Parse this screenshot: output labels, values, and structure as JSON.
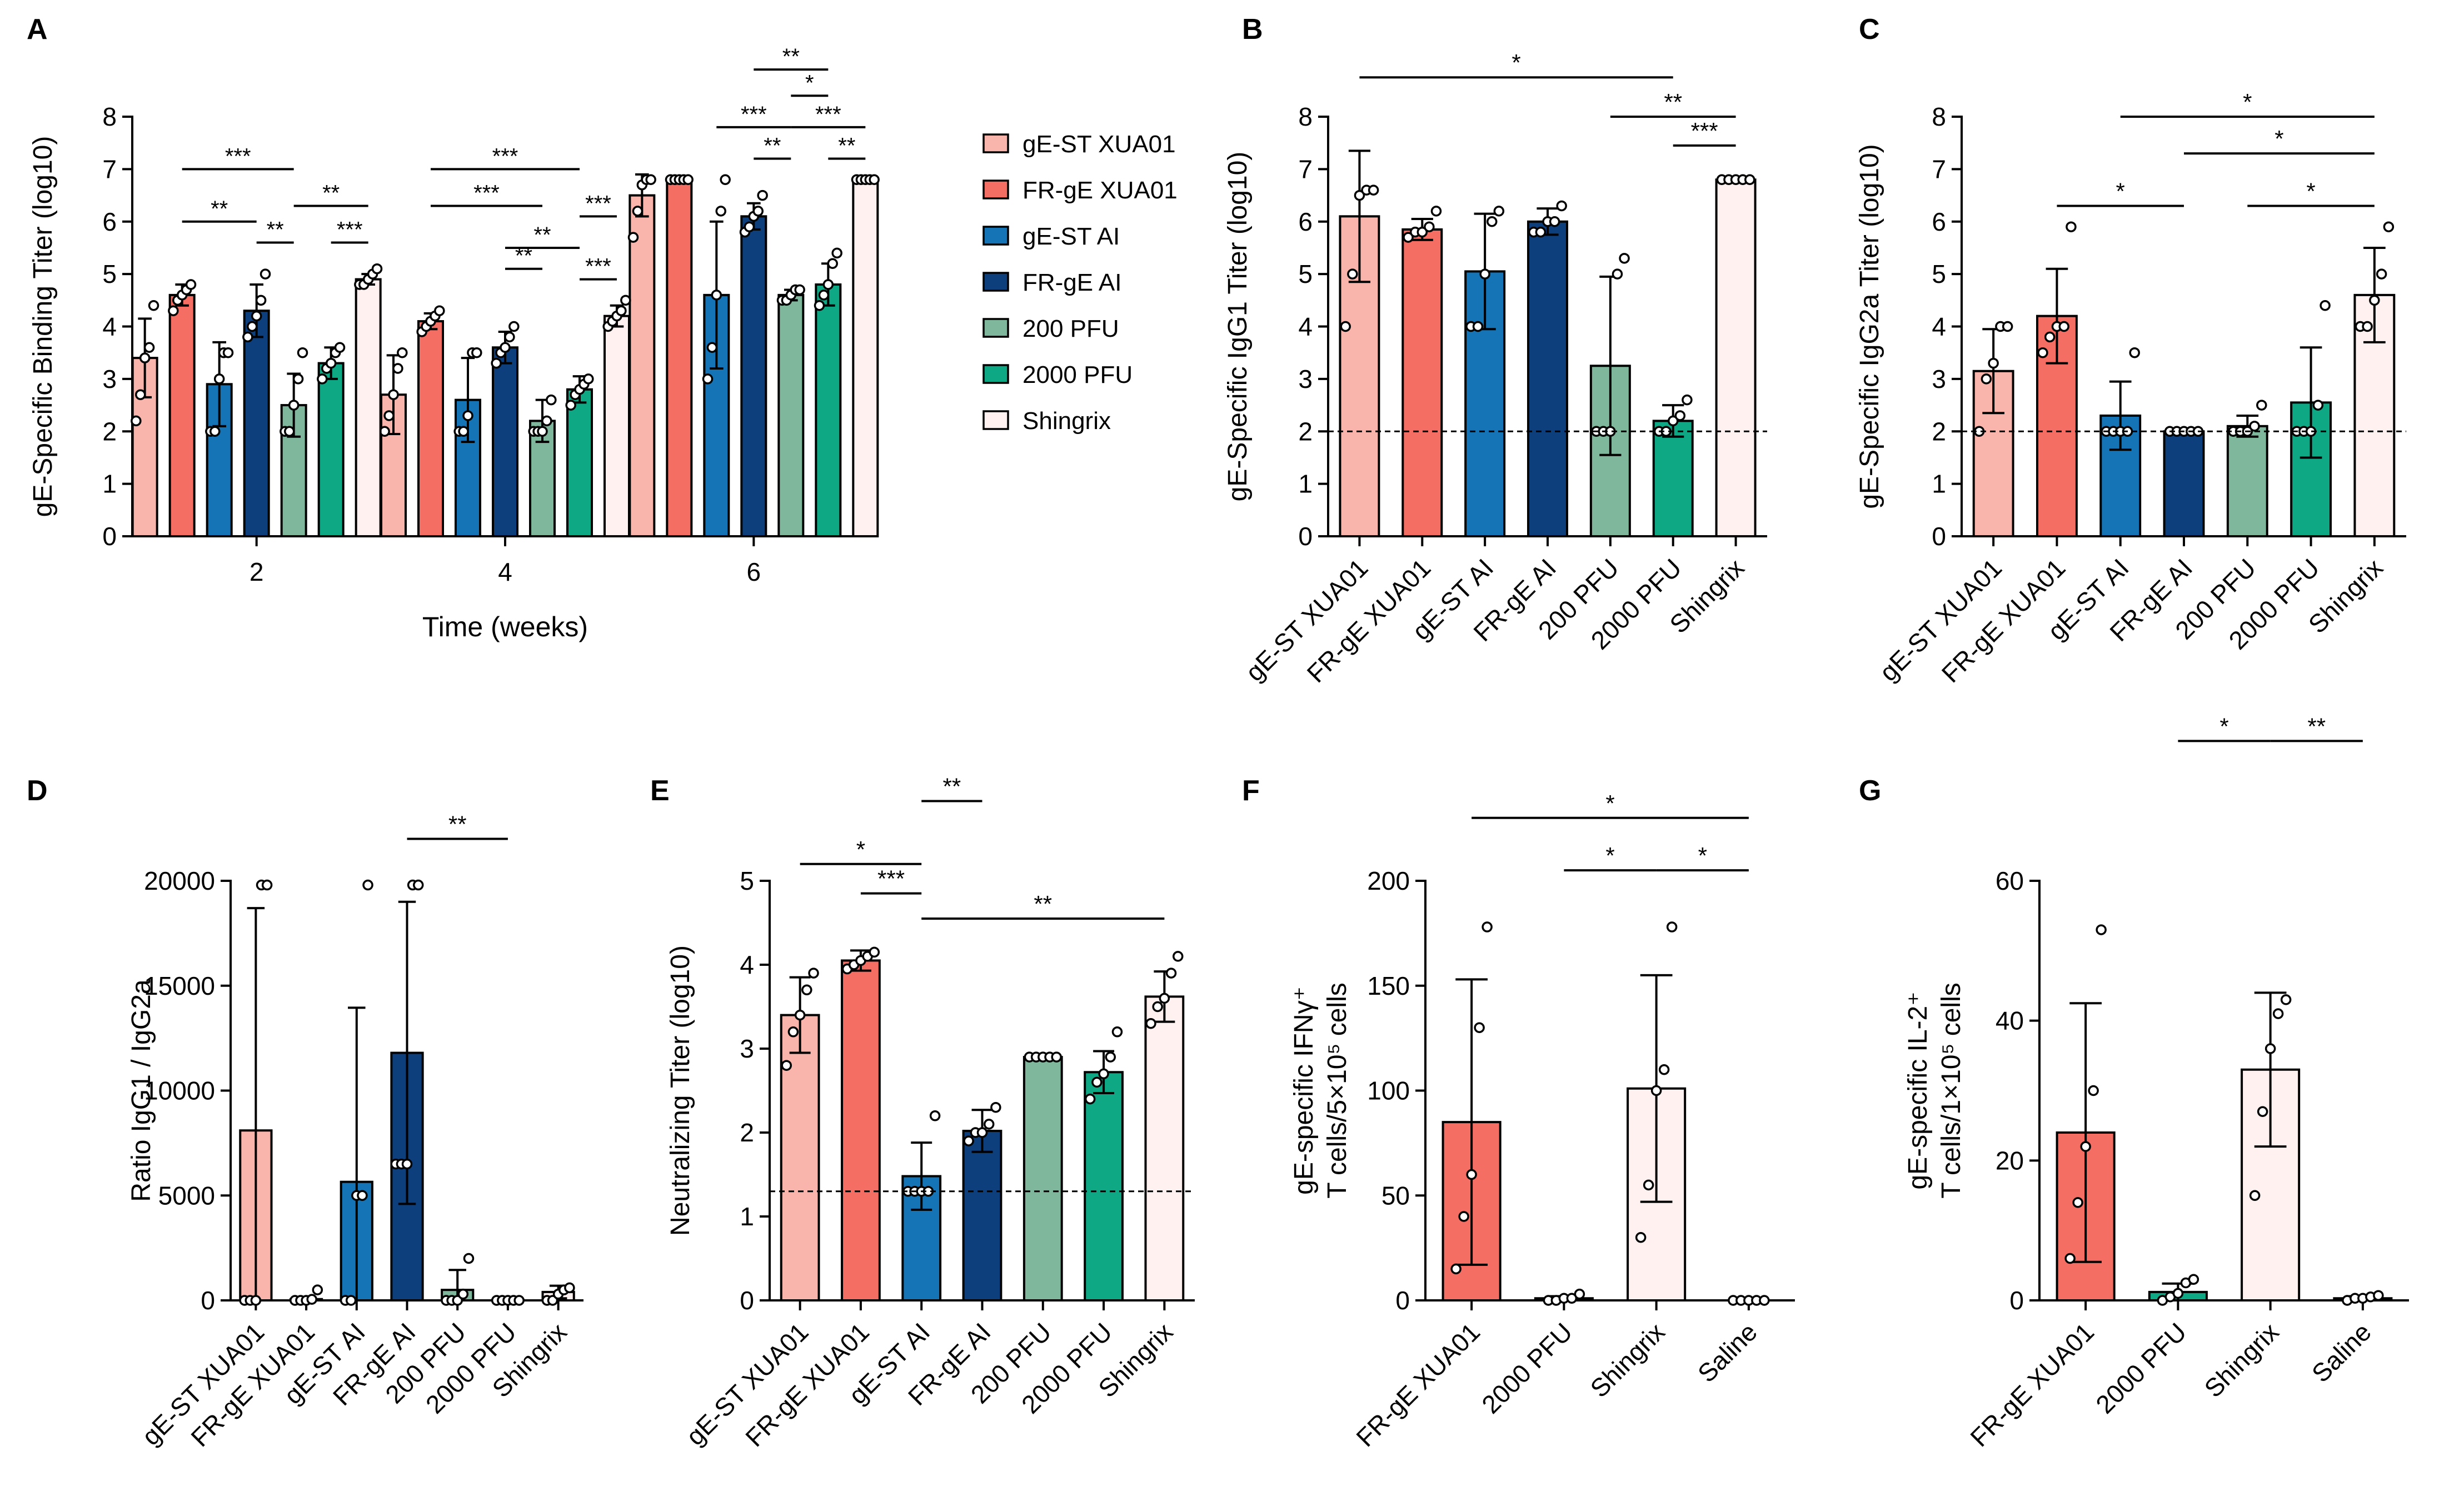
{
  "colors": {
    "gE-ST XUA01": "#f9b4ac",
    "FR-gE XUA01": "#f56e63",
    "gE-ST AI": "#1474b6",
    "FR-gE AI": "#0d3f7c",
    "200 PFU": "#7eb79b",
    "2000 PFU": "#0ea885",
    "Shingrix": "#fff1ef",
    "Saline": "#ffffff"
  },
  "chart_data": [
    {
      "panel": "A",
      "type": "bar",
      "ylabel": "gE-Specific Binding Titer (log10)",
      "xlabel": "Time (weeks)",
      "ylim": [
        0,
        8
      ],
      "yticks": [
        "0",
        "1",
        "2",
        "3",
        "4",
        "5",
        "6",
        "7",
        "8"
      ],
      "categories": [
        "2",
        "4",
        "6"
      ],
      "legend": [
        "gE-ST XUA01",
        "FR-gE XUA01",
        "gE-ST AI",
        "FR-gE AI",
        "200 PFU",
        "2000 PFU",
        "Shingrix"
      ],
      "series": [
        {
          "name": "gE-ST XUA01",
          "values": [
            3.4,
            2.7,
            6.5
          ],
          "sd": [
            0.75,
            0.75,
            0.4
          ],
          "points": [
            [
              2.2,
              2.7,
              3.4,
              3.6,
              4.4
            ],
            [
              2.0,
              2.3,
              2.7,
              3.2,
              3.5
            ],
            [
              5.7,
              6.2,
              6.7,
              6.8,
              6.8
            ]
          ]
        },
        {
          "name": "FR-gE XUA01",
          "values": [
            4.6,
            4.1,
            6.8
          ],
          "sd": [
            0.2,
            0.15,
            0.05
          ],
          "points": [
            [
              4.3,
              4.5,
              4.6,
              4.7,
              4.8
            ],
            [
              3.9,
              4.0,
              4.1,
              4.2,
              4.3
            ],
            [
              6.8,
              6.8,
              6.8,
              6.8,
              6.8
            ]
          ]
        },
        {
          "name": "gE-ST AI",
          "values": [
            2.9,
            2.6,
            4.6
          ],
          "sd": [
            0.8,
            0.8,
            1.4
          ],
          "points": [
            [
              2.0,
              2.0,
              3.0,
              3.5,
              3.5
            ],
            [
              2.0,
              2.0,
              2.3,
              3.5,
              3.5
            ],
            [
              3.0,
              3.6,
              4.6,
              6.2,
              6.8
            ]
          ]
        },
        {
          "name": "FR-gE AI",
          "values": [
            4.3,
            3.6,
            6.1
          ],
          "sd": [
            0.5,
            0.3,
            0.25
          ],
          "points": [
            [
              3.8,
              4.0,
              4.2,
              4.5,
              5.0
            ],
            [
              3.3,
              3.5,
              3.6,
              3.8,
              4.0
            ],
            [
              5.8,
              5.9,
              6.1,
              6.2,
              6.5
            ]
          ]
        },
        {
          "name": "200 PFU",
          "values": [
            2.5,
            2.2,
            4.6
          ],
          "sd": [
            0.6,
            0.4,
            0.1
          ],
          "points": [
            [
              2.0,
              2.0,
              2.5,
              3.0,
              3.5
            ],
            [
              2.0,
              2.0,
              2.0,
              2.2,
              2.6
            ],
            [
              4.5,
              4.5,
              4.6,
              4.7,
              4.7
            ]
          ]
        },
        {
          "name": "2000 PFU",
          "values": [
            3.3,
            2.8,
            4.8
          ],
          "sd": [
            0.3,
            0.25,
            0.4
          ],
          "points": [
            [
              3.0,
              3.2,
              3.3,
              3.5,
              3.6
            ],
            [
              2.5,
              2.7,
              2.8,
              2.9,
              3.0
            ],
            [
              4.4,
              4.6,
              4.8,
              5.2,
              5.4
            ]
          ]
        },
        {
          "name": "Shingrix",
          "values": [
            4.9,
            4.2,
            6.8
          ],
          "sd": [
            0.1,
            0.2,
            0.05
          ],
          "points": [
            [
              4.8,
              4.8,
              4.9,
              5.0,
              5.1
            ],
            [
              4.0,
              4.1,
              4.2,
              4.3,
              4.5
            ],
            [
              6.8,
              6.8,
              6.8,
              6.8,
              6.8
            ]
          ]
        }
      ],
      "sig": [
        {
          "cat": 0,
          "from": 1,
          "to": 4,
          "label": "***"
        },
        {
          "cat": 0,
          "from": 1,
          "to": 3,
          "label": "**"
        },
        {
          "cat": 0,
          "from": 4,
          "to": 6,
          "label": "**"
        },
        {
          "cat": 0,
          "from": 3,
          "to": 4,
          "label": "**"
        },
        {
          "cat": 0,
          "from": 5,
          "to": 6,
          "label": "***"
        },
        {
          "cat": 1,
          "from": 1,
          "to": 5,
          "label": "***"
        },
        {
          "cat": 1,
          "from": 1,
          "to": 4,
          "label": "***"
        },
        {
          "cat": 1,
          "from": 5,
          "to": 6,
          "label": "***"
        },
        {
          "cat": 1,
          "from": 3,
          "to": 5,
          "label": "**"
        },
        {
          "cat": 1,
          "from": 3,
          "to": 4,
          "label": "**"
        },
        {
          "cat": 1,
          "from": 5,
          "to": 6,
          "label": "***"
        },
        {
          "cat": 2,
          "from": 3,
          "to": 5,
          "label": "**"
        },
        {
          "cat": 2,
          "from": 4,
          "to": 5,
          "label": "*"
        },
        {
          "cat": 2,
          "from": 2,
          "to": 4,
          "label": "***"
        },
        {
          "cat": 2,
          "from": 4,
          "to": 6,
          "label": "***"
        },
        {
          "cat": 2,
          "from": 3,
          "to": 4,
          "label": "**"
        },
        {
          "cat": 2,
          "from": 5,
          "to": 6,
          "label": "**"
        }
      ]
    },
    {
      "panel": "B",
      "type": "bar",
      "ylabel": "gE-Specific IgG1 Titer (log10)",
      "ylim": [
        0,
        8
      ],
      "yticks": [
        "0",
        "1",
        "2",
        "3",
        "4",
        "5",
        "6",
        "7",
        "8"
      ],
      "categories": [
        "gE-ST XUA01",
        "FR-gE XUA01",
        "gE-ST AI",
        "FR-gE AI",
        "200 PFU",
        "2000 PFU",
        "Shingrix"
      ],
      "values": [
        6.1,
        5.85,
        5.05,
        6.0,
        3.25,
        2.2,
        6.8
      ],
      "sd": [
        1.25,
        0.2,
        1.1,
        0.25,
        1.7,
        0.3,
        0.02
      ],
      "points": [
        [
          4.0,
          5.0,
          6.5,
          6.6,
          6.6
        ],
        [
          5.7,
          5.8,
          5.8,
          5.9,
          6.2
        ],
        [
          4.0,
          4.0,
          5.0,
          6.0,
          6.2
        ],
        [
          5.8,
          5.8,
          6.0,
          6.0,
          6.3
        ],
        [
          2.0,
          2.0,
          2.0,
          5.0,
          5.3
        ],
        [
          2.0,
          2.0,
          2.2,
          2.3,
          2.6
        ],
        [
          6.8,
          6.8,
          6.8,
          6.8,
          6.8
        ]
      ],
      "dashed_line": 2,
      "sig": [
        {
          "from": 0,
          "to": 5,
          "label": "*"
        },
        {
          "from": 4,
          "to": 6,
          "label": "**"
        },
        {
          "from": 5,
          "to": 6,
          "label": "***"
        }
      ]
    },
    {
      "panel": "C",
      "type": "bar",
      "ylabel": "gE-Specific IgG2a Titer (log10)",
      "ylim": [
        0,
        8
      ],
      "yticks": [
        "0",
        "1",
        "2",
        "3",
        "4",
        "5",
        "6",
        "7",
        "8"
      ],
      "categories": [
        "gE-ST XUA01",
        "FR-gE XUA01",
        "gE-ST AI",
        "FR-gE AI",
        "200 PFU",
        "2000 PFU",
        "Shingrix"
      ],
      "values": [
        3.15,
        4.2,
        2.3,
        2.0,
        2.1,
        2.55,
        4.6
      ],
      "sd": [
        0.8,
        0.9,
        0.65,
        0.02,
        0.2,
        1.05,
        0.9
      ],
      "points": [
        [
          2.0,
          3.0,
          3.3,
          4.0,
          4.0
        ],
        [
          3.5,
          3.8,
          4.0,
          4.0,
          5.9
        ],
        [
          2.0,
          2.0,
          2.0,
          2.0,
          3.5
        ],
        [
          2.0,
          2.0,
          2.0,
          2.0,
          2.0
        ],
        [
          2.0,
          2.0,
          2.0,
          2.1,
          2.5
        ],
        [
          2.0,
          2.0,
          2.0,
          2.5,
          4.4
        ],
        [
          4.0,
          4.0,
          4.5,
          5.0,
          5.9
        ]
      ],
      "dashed_line": 2,
      "sig": [
        {
          "from": 2,
          "to": 6,
          "label": "*"
        },
        {
          "from": 3,
          "to": 6,
          "label": "*"
        },
        {
          "from": 1,
          "to": 3,
          "label": "*"
        },
        {
          "from": 4,
          "to": 6,
          "label": "*"
        }
      ]
    },
    {
      "panel": "D",
      "type": "bar",
      "ylabel": "Ratio  IgG1 / IgG2a",
      "ylim": [
        0,
        20000
      ],
      "yticks": [
        "0",
        "5000",
        "10000",
        "15000",
        "20000"
      ],
      "categories": [
        "gE-ST XUA01",
        "FR-gE XUA01",
        "gE-ST AI",
        "FR-gE AI",
        "200 PFU",
        "2000 PFU",
        "Shingrix"
      ],
      "values": [
        8100,
        60,
        5650,
        11800,
        500,
        10,
        400
      ],
      "sd": [
        10600,
        100,
        8300,
        7200,
        950,
        20,
        300
      ],
      "points": [
        [
          0,
          0,
          0,
          19800,
          19800
        ],
        [
          0,
          0,
          0,
          50,
          500
        ],
        [
          0,
          0,
          5000,
          5000,
          19800
        ],
        [
          6500,
          6500,
          6500,
          19800,
          19800
        ],
        [
          0,
          0,
          0,
          300,
          2000
        ],
        [
          0,
          0,
          0,
          0,
          0
        ],
        [
          0,
          0,
          300,
          500,
          600
        ]
      ],
      "sig": [
        {
          "from": 3,
          "to": 5,
          "label": "**"
        }
      ]
    },
    {
      "panel": "E",
      "type": "bar",
      "ylabel": "Neutralizing Titer (log10)",
      "ylim": [
        0,
        5
      ],
      "yticks": [
        "0",
        "1",
        "2",
        "3",
        "4",
        "5"
      ],
      "categories": [
        "gE-ST XUA01",
        "FR-gE XUA01",
        "gE-ST AI",
        "FR-gE AI",
        "200 PFU",
        "2000 PFU",
        "Shingrix"
      ],
      "values": [
        3.4,
        4.05,
        1.48,
        2.02,
        2.9,
        2.72,
        3.62
      ],
      "sd": [
        0.45,
        0.12,
        0.4,
        0.25,
        0.02,
        0.25,
        0.3
      ],
      "points": [
        [
          2.8,
          3.2,
          3.4,
          3.7,
          3.9
        ],
        [
          3.95,
          4.0,
          4.05,
          4.1,
          4.15
        ],
        [
          1.3,
          1.3,
          1.3,
          1.3,
          2.2
        ],
        [
          1.9,
          2.0,
          2.0,
          2.1,
          2.3
        ],
        [
          2.9,
          2.9,
          2.9,
          2.9,
          2.9
        ],
        [
          2.4,
          2.6,
          2.7,
          2.9,
          3.2
        ],
        [
          3.3,
          3.5,
          3.6,
          3.9,
          4.1
        ]
      ],
      "dashed_line": 1.3,
      "sig": [
        {
          "from": 2,
          "to": 3,
          "label": "**"
        },
        {
          "from": 0,
          "to": 2,
          "label": "*"
        },
        {
          "from": 1,
          "to": 2,
          "label": "***"
        },
        {
          "from": 2,
          "to": 6,
          "label": "**"
        }
      ]
    },
    {
      "panel": "F",
      "type": "bar",
      "ylabel_line1": "gE-specific IFNγ⁺",
      "ylabel_line2": "T cells/5×10⁵ cells",
      "ylim": [
        0,
        200
      ],
      "yticks": [
        "0",
        "50",
        "100",
        "150",
        "200"
      ],
      "categories": [
        "FR-gE XUA01",
        "2000 PFU",
        "Shingrix",
        "Saline"
      ],
      "values": [
        85,
        1,
        101,
        0
      ],
      "sd": [
        68,
        1,
        54,
        0
      ],
      "points": [
        [
          15,
          40,
          60,
          130,
          178
        ],
        [
          0,
          0,
          1,
          1,
          3
        ],
        [
          30,
          55,
          100,
          110,
          178
        ],
        [
          0,
          0,
          0,
          0,
          0
        ]
      ],
      "sig": [
        {
          "from": 0,
          "to": 3,
          "label": "*"
        },
        {
          "from": 1,
          "to": 2,
          "label": "*"
        },
        {
          "from": 2,
          "to": 3,
          "label": "*"
        }
      ]
    },
    {
      "panel": "G",
      "type": "bar",
      "ylabel_line1": "gE-specific IL-2⁺",
      "ylabel_line2": "T cells/1×10⁵ cells",
      "ylim": [
        0,
        60
      ],
      "yticks": [
        "0",
        "20",
        "40",
        "60"
      ],
      "categories": [
        "FR-gE XUA01",
        "2000 PFU",
        "Shingrix",
        "Saline"
      ],
      "values": [
        24,
        1.2,
        33,
        0.3
      ],
      "sd": [
        18.5,
        1.2,
        11,
        0.3
      ],
      "points": [
        [
          6,
          14,
          22,
          30,
          53
        ],
        [
          0,
          0.5,
          1,
          2.5,
          3
        ],
        [
          15,
          27,
          36,
          41,
          43
        ],
        [
          0,
          0.3,
          0.3,
          0.5,
          0.7
        ]
      ],
      "sig": [
        {
          "from": 1,
          "to": 2,
          "label": "*"
        },
        {
          "from": 2,
          "to": 3,
          "label": "**"
        }
      ]
    }
  ]
}
